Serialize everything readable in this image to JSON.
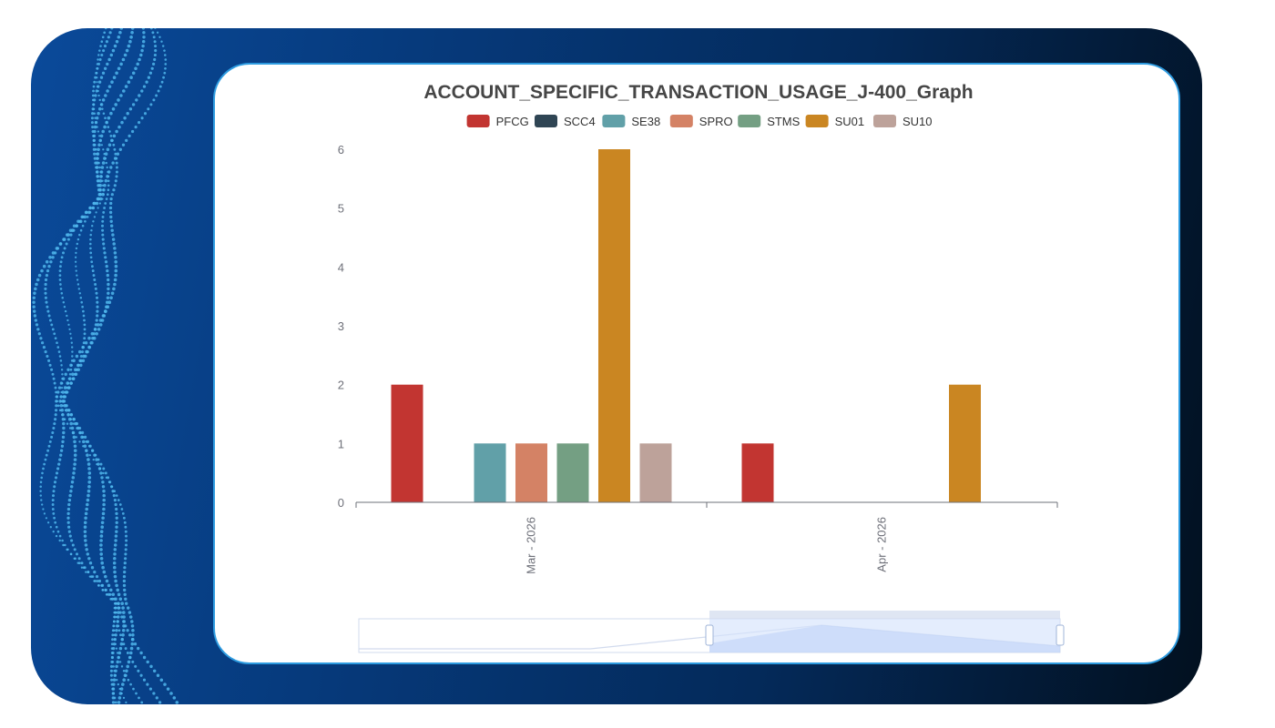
{
  "theme": {
    "frame_gradient": [
      "#0a4a9a",
      "#042a5a",
      "#02101f"
    ],
    "card_border": "#2d9be0",
    "wave_dot_color": "#4fb6ec"
  },
  "chart_data": {
    "type": "bar",
    "title": "ACCOUNT_SPECIFIC_TRANSACTION_USAGE_J-400_Graph",
    "categories": [
      "Mar - 2026",
      "Apr - 2026"
    ],
    "series": [
      {
        "name": "PFCG",
        "color": "#c23531",
        "values": [
          2,
          1
        ]
      },
      {
        "name": "SCC4",
        "color": "#2f4554",
        "values": [
          0,
          0
        ]
      },
      {
        "name": "SE38",
        "color": "#61a0a8",
        "values": [
          1,
          0
        ]
      },
      {
        "name": "SPRO",
        "color": "#d48265",
        "values": [
          1,
          0
        ]
      },
      {
        "name": "STMS",
        "color": "#749f83",
        "values": [
          1,
          0
        ]
      },
      {
        "name": "SU01",
        "color": "#ca8622",
        "values": [
          6,
          2
        ]
      },
      {
        "name": "SU10",
        "color": "#bda29a",
        "values": [
          1,
          0
        ]
      }
    ],
    "ylim": [
      0,
      6
    ],
    "yticks": [
      0,
      1,
      2,
      3,
      4,
      5,
      6
    ],
    "grid": false,
    "legend_position": "top-center",
    "zoom_slider": {
      "start_fraction": 0.5,
      "end_fraction": 1.0
    }
  }
}
